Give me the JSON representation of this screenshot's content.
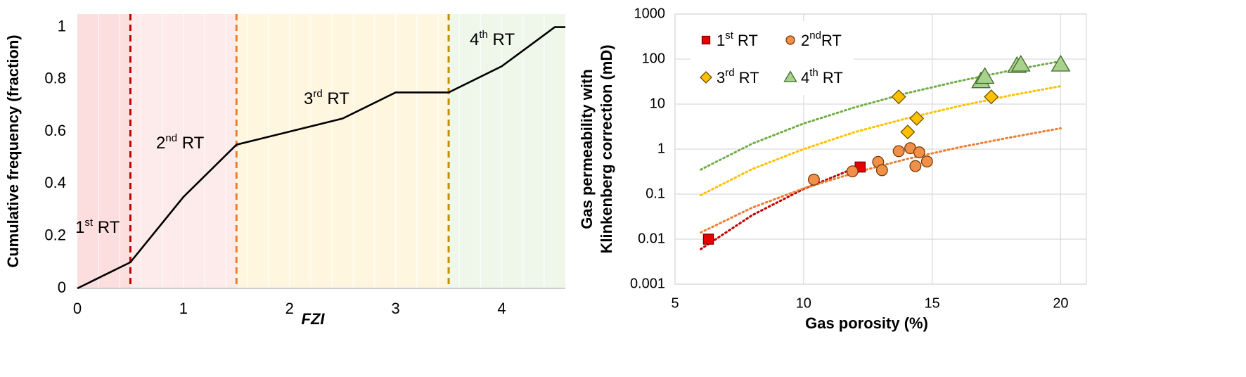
{
  "chart_data": [
    {
      "type": "line",
      "x": [
        0,
        0.5,
        1,
        1.5,
        2,
        2.5,
        3,
        3.5,
        4,
        4.5,
        4.6
      ],
      "values": [
        0,
        0.1,
        0.35,
        0.55,
        0.6,
        0.65,
        0.75,
        0.75,
        0.85,
        1,
        1
      ],
      "color": "#000000",
      "xlabel": "FZI",
      "ylabel": "Cumulative frequency (fraction)",
      "xlim": [
        0,
        4.6
      ],
      "ylim": [
        0,
        1.05
      ],
      "xticks": [
        0,
        1,
        2,
        3,
        4
      ],
      "yticks": [
        0,
        0.2,
        0.4,
        0.6,
        0.8,
        1
      ],
      "regions": [
        {
          "from": 0,
          "to": 0.5,
          "color": "#fcdede"
        },
        {
          "from": 0.5,
          "to": 1.5,
          "color": "#fdeaea"
        },
        {
          "from": 1.5,
          "to": 3.5,
          "color": "#fff6e0"
        },
        {
          "from": 3.5,
          "to": 4.6,
          "color": "#eff7ea"
        }
      ],
      "vlines": [
        {
          "x": 0.5,
          "color": "#c00000"
        },
        {
          "x": 1.5,
          "color": "#ed7d31"
        },
        {
          "x": 3.5,
          "color": "#bf9000"
        }
      ],
      "annotations": [
        {
          "base": "1",
          "sup": "st",
          "rest": " RT"
        },
        {
          "base": "2",
          "sup": "nd",
          "rest": " RT"
        },
        {
          "base": "3",
          "sup": "rd",
          "rest": " RT"
        },
        {
          "base": "4",
          "sup": "th",
          "rest": " RT"
        }
      ]
    },
    {
      "type": "scatter",
      "xlabel": "Gas porosity (%)",
      "ylabel": [
        "Gas permeability with",
        "Klinkenberg correction (mD)"
      ],
      "xlim": [
        5,
        21
      ],
      "ylim": [
        0.001,
        1000
      ],
      "yscale": "log",
      "grid": true,
      "xticks": [
        5,
        10,
        15,
        20
      ],
      "yticks": [
        0.001,
        0.01,
        0.1,
        1,
        10,
        100,
        1000
      ],
      "legend": "upper left",
      "series": [
        {
          "name": {
            "base": "1",
            "sup": "st",
            "rest": " RT"
          },
          "marker": "square",
          "color": "#e60000",
          "edge": "#7a0000",
          "x": [
            6.3,
            12.2
          ],
          "values": [
            0.01,
            0.4
          ],
          "trend": {
            "color": "#c00000",
            "x": [
              6,
              8,
              10,
              12,
              12.2
            ],
            "values": [
              0.006,
              0.034,
              0.13,
              0.38,
              0.42
            ]
          }
        },
        {
          "name": {
            "base": "2",
            "sup": "nd",
            "rest": "RT"
          },
          "marker": "circle",
          "color": "#f0904a",
          "edge": "#7a3b00",
          "x": [
            10.4,
            11.9,
            12.9,
            13.05,
            13.7,
            14.15,
            14.35,
            14.5,
            14.8
          ],
          "values": [
            0.21,
            0.32,
            0.52,
            0.34,
            0.9,
            1.05,
            0.42,
            0.85,
            0.53
          ],
          "trend": {
            "color": "#ed7d31",
            "x": [
              6,
              8,
              10,
              12,
              14,
              16,
              18,
              20
            ],
            "values": [
              0.014,
              0.05,
              0.134,
              0.3,
              0.6,
              1.08,
              1.8,
              2.9
            ]
          }
        },
        {
          "name": {
            "base": "3",
            "sup": "rd",
            "rest": " RT"
          },
          "marker": "diamond",
          "color": "#ffc000",
          "edge": "#6b5000",
          "x": [
            13.7,
            14.05,
            14.4,
            17.3
          ],
          "values": [
            14.5,
            2.4,
            4.8,
            14.5
          ],
          "trend": {
            "color": "#ffc000",
            "x": [
              6,
              8,
              10,
              12,
              14,
              16,
              18,
              20
            ],
            "values": [
              0.095,
              0.36,
              1,
              2.4,
              4.8,
              8.9,
              15.4,
              25
            ]
          }
        },
        {
          "name": {
            "base": "4",
            "sup": "th",
            "rest": " RT"
          },
          "marker": "triangle",
          "color": "#a9d18e",
          "edge": "#3f6a28",
          "x": [
            16.9,
            17.05,
            18.3,
            18.45,
            20
          ],
          "values": [
            32,
            40,
            70,
            75,
            75
          ],
          "trend": {
            "color": "#70ad47",
            "x": [
              6,
              8,
              10,
              12,
              14,
              16,
              18,
              20
            ],
            "values": [
              0.35,
              1.32,
              3.7,
              8.5,
              17.4,
              32,
              55,
              90
            ]
          }
        }
      ]
    }
  ]
}
